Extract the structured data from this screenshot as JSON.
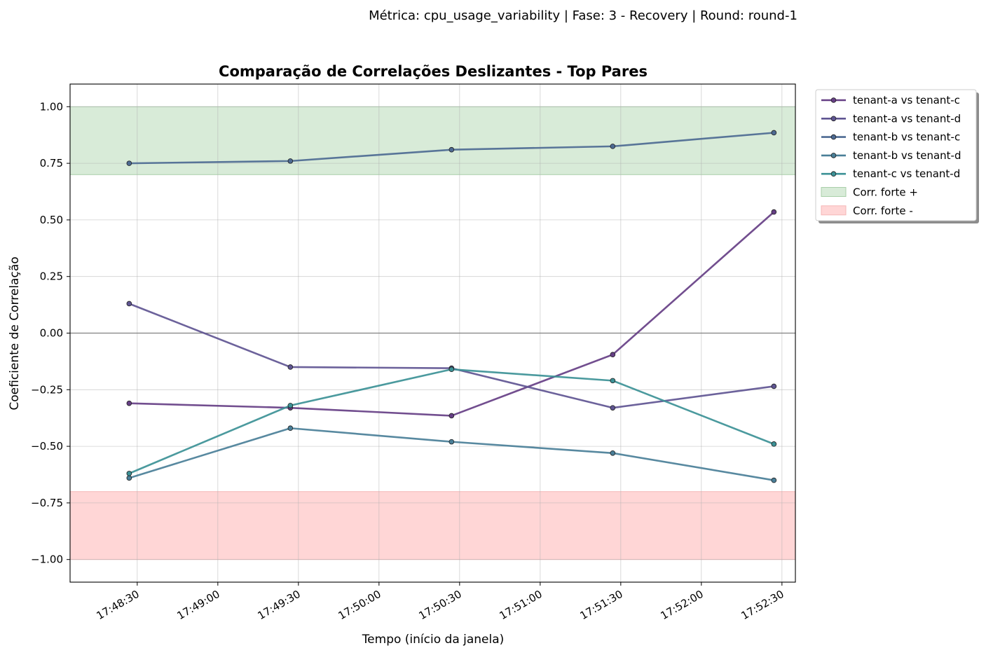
{
  "suptitle": "Métrica: cpu_usage_variability | Fase: 3 - Recovery | Round: round-1",
  "chart_data": {
    "type": "line",
    "title": "Comparação de Correlações Deslizantes - Top Pares",
    "xlabel": "Tempo (início da janela)",
    "ylabel": "Coeficiente de Correlação",
    "ylim": [
      -1.1,
      1.1
    ],
    "xlim": [
      "17:48:05",
      "17:52:35"
    ],
    "x": [
      "17:48:27",
      "17:49:27",
      "17:50:27",
      "17:51:27",
      "17:52:27"
    ],
    "x_ticks": [
      "17:48:30",
      "17:49:00",
      "17:49:30",
      "17:50:00",
      "17:50:30",
      "17:51:00",
      "17:51:30",
      "17:52:00",
      "17:52:30"
    ],
    "y_ticks": [
      1.0,
      0.75,
      0.5,
      0.25,
      0.0,
      -0.25,
      -0.5,
      -0.75,
      -1.0
    ],
    "y_tick_labels": [
      "1.00",
      "0.75",
      "0.50",
      "0.25",
      "0.00",
      "−0.25",
      "−0.50",
      "−0.75",
      "−1.00"
    ],
    "grid": true,
    "zero_line": 0.0,
    "bands": [
      {
        "name": "Corr. forte +",
        "from": 0.7,
        "to": 1.0,
        "color": "#d8ebd8",
        "edge": "#a9cfa9"
      },
      {
        "name": "Corr. forte -",
        "from": -1.0,
        "to": -0.7,
        "color": "#ffd6d6",
        "edge": "#f5b7b7"
      }
    ],
    "series": [
      {
        "name": "tenant-a vs tenant-c",
        "color": "#663f85",
        "values": [
          -0.31,
          -0.33,
          -0.365,
          -0.095,
          0.535
        ]
      },
      {
        "name": "tenant-a vs tenant-d",
        "color": "#5f5592",
        "values": [
          0.13,
          -0.15,
          -0.155,
          -0.33,
          -0.235
        ]
      },
      {
        "name": "tenant-b vs tenant-c",
        "color": "#4d6a92",
        "values": [
          0.75,
          0.76,
          0.81,
          0.825,
          0.885
        ]
      },
      {
        "name": "tenant-b vs tenant-d",
        "color": "#4a7f98",
        "values": [
          -0.64,
          -0.42,
          -0.48,
          -0.53,
          -0.65
        ]
      },
      {
        "name": "tenant-c vs tenant-d",
        "color": "#3c9196",
        "values": [
          -0.62,
          -0.32,
          -0.16,
          -0.21,
          -0.49
        ]
      }
    ],
    "legend_position": "outside-upper-right"
  }
}
